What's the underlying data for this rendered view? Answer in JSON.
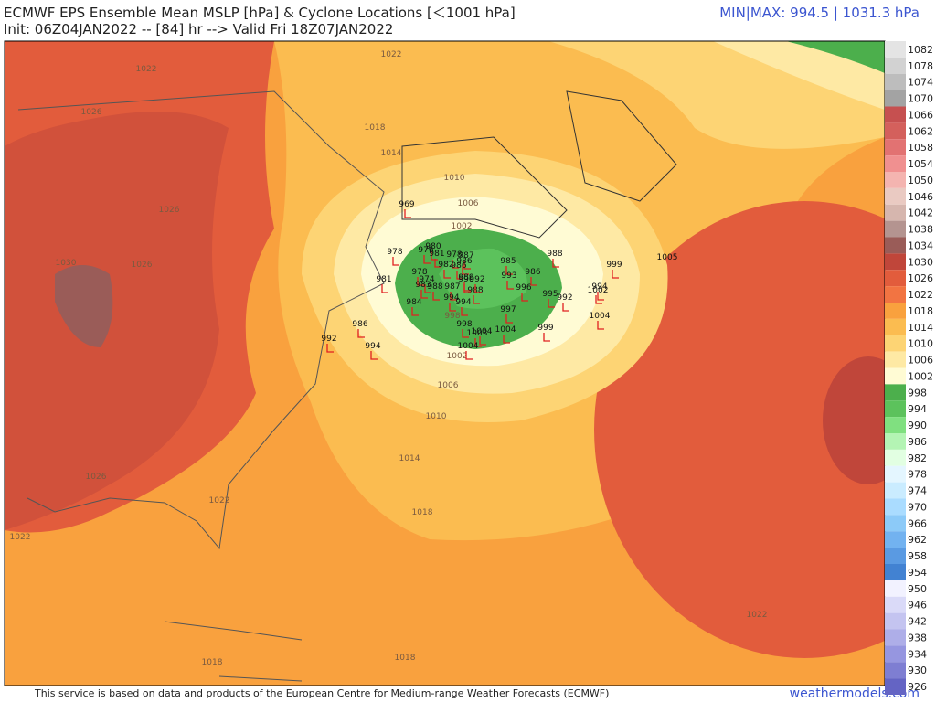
{
  "header": {
    "title": "ECMWF EPS Ensemble Mean MSLP [hPa] & Cyclone Locations [＜1001 hPa]",
    "init": "Init: 06Z04JAN2022 -- [84] hr --> Valid Fri 18Z07JAN2022",
    "minmax": "MIN|MAX: 994.5 | 1031.3 hPa"
  },
  "colorbar": {
    "labels": [
      "1082",
      "1078",
      "1074",
      "1070",
      "1066",
      "1062",
      "1058",
      "1054",
      "1050",
      "1046",
      "1042",
      "1038",
      "1034",
      "1030",
      "1026",
      "1022",
      "1018",
      "1014",
      "1010",
      "1006",
      "1002",
      "998",
      "994",
      "990",
      "986",
      "982",
      "978",
      "974",
      "970",
      "966",
      "962",
      "958",
      "954",
      "950",
      "946",
      "942",
      "938",
      "934",
      "930",
      "926"
    ],
    "colors": [
      "#e4e4e4",
      "#d2d2d2",
      "#bdbdbd",
      "#a3a3a3",
      "#c65050",
      "#d4605c",
      "#e27272",
      "#f09090",
      "#f4b4b0",
      "#eacac2",
      "#d6b6ae",
      "#b49490",
      "#9a5c58",
      "#c0463a",
      "#e25c3c",
      "#f27442",
      "#f9a13e",
      "#fbbc50",
      "#fdd474",
      "#fee9a4",
      "#fffbd4",
      "#4caf4c",
      "#5cc25c",
      "#80e080",
      "#b4f4b4",
      "#e2ffe2",
      "#e4f6ff",
      "#caecff",
      "#aadcff",
      "#8ccaf8",
      "#72b2f0",
      "#5a9ae2",
      "#4282d2",
      "#f2f2ff",
      "#dadaf8",
      "#c4c4f0",
      "#aeaee8",
      "#9696e0",
      "#7e7ed2",
      "#6464c4"
    ]
  },
  "contour_labels": [
    "1022",
    "1022",
    "1026",
    "1026",
    "1030",
    "1026",
    "1018",
    "1014",
    "1010",
    "1006",
    "1002",
    "998",
    "1002",
    "1006",
    "1010",
    "1014",
    "1018",
    "1022",
    "1026",
    "1022",
    "1022",
    "1018",
    "1018",
    "1005"
  ],
  "cyclones": [
    "969",
    "978",
    "980",
    "976",
    "981",
    "978",
    "987",
    "986",
    "985",
    "988",
    "999",
    "978",
    "982",
    "986",
    "989",
    "993",
    "986",
    "996",
    "995",
    "992",
    "994",
    "1002",
    "981",
    "974",
    "983",
    "988",
    "987",
    "988",
    "990",
    "992",
    "984",
    "994",
    "994",
    "997",
    "1004",
    "986",
    "998",
    "1004",
    "999",
    "1003",
    "1004",
    "992",
    "994",
    "1004"
  ],
  "footer": {
    "note": "This service is based on data and products of the European Centre for Medium-range Weather Forecasts (ECMWF)",
    "site": "weathermodels.com"
  }
}
